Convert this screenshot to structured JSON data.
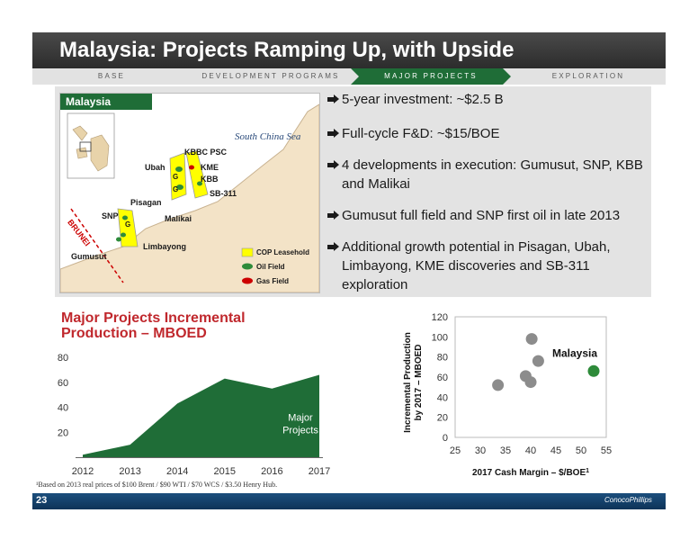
{
  "header": {
    "title": "Malaysia: Projects Ramping Up, with Upside",
    "nav": [
      {
        "label": "BASE",
        "active": false
      },
      {
        "label": "DEVELOPMENT PROGRAMS",
        "active": false
      },
      {
        "label": "MAJOR PROJECTS",
        "active": true
      },
      {
        "label": "EXPLORATION",
        "active": false
      }
    ]
  },
  "map": {
    "label": "Malaysia",
    "sea": "South China Sea",
    "places": {
      "kbbc": "KBBC PSC",
      "ubah": "Ubah",
      "kme": "KME",
      "kbb": "KBB",
      "sb311": "SB-311",
      "pisagan": "Pisagan",
      "snp": "SNP",
      "malikai": "Malikai",
      "limbayong": "Limbayong",
      "gumusut": "Gumusut",
      "brunei": "BRUNEI",
      "g1": "G",
      "g2": "G",
      "g3": "G"
    },
    "legend": {
      "leasehold": "COP Leasehold",
      "oil": "Oil Field",
      "gas": "Gas Field"
    },
    "colors": {
      "leasehold": "#ffff00",
      "oil": "#2e8b3a",
      "gas": "#cc0000"
    }
  },
  "bullets": [
    "5-year investment: ~$2.5 B",
    "Full-cycle F&D: ~$15/BOE",
    "4 developments in execution: Gumusut, SNP, KBB and Malikai",
    "Gumusut full field and SNP first oil in late 2013",
    "Additional growth potential in Pisagan, Ubah, Limbayong, KME discoveries and SB-311 exploration"
  ],
  "chart_data": [
    {
      "type": "area",
      "title_line1": "Major Projects Incremental",
      "title_line2": "Production – MBOED",
      "x": [
        2012,
        2013,
        2014,
        2015,
        2016,
        2017
      ],
      "x_tick_labels": [
        "2012",
        "2013",
        "2014",
        "2015",
        "2016",
        "2017"
      ],
      "y_ticks": [
        20,
        40,
        60,
        80
      ],
      "series": [
        {
          "name": "Major Projects",
          "name_line1": "Major",
          "name_line2": "Projects",
          "values": [
            2,
            10,
            43,
            63,
            55,
            66
          ],
          "color": "#1f6d37"
        }
      ],
      "ylim": [
        0,
        88
      ]
    },
    {
      "type": "scatter",
      "xlabel": "2017 Cash Margin – $/BOE",
      "xlabel_sup": "1",
      "ylabel_line1": "Incremental Production",
      "ylabel_line2": "by 2017 – MBOED",
      "xlim": [
        25,
        55
      ],
      "ylim": [
        0,
        120
      ],
      "x_ticks": [
        25,
        30,
        35,
        40,
        45,
        50,
        55
      ],
      "y_ticks": [
        0,
        20,
        40,
        60,
        80,
        100,
        120
      ],
      "points": [
        {
          "x": 33.5,
          "y": 52,
          "color": "#8c8c8c"
        },
        {
          "x": 39,
          "y": 61,
          "color": "#8c8c8c"
        },
        {
          "x": 40,
          "y": 55,
          "color": "#8c8c8c"
        },
        {
          "x": 40.2,
          "y": 98,
          "color": "#8c8c8c"
        },
        {
          "x": 41.5,
          "y": 76,
          "color": "#8c8c8c"
        },
        {
          "x": 52.5,
          "y": 66,
          "color": "#2e8b3a",
          "label": "Malaysia"
        }
      ]
    }
  ],
  "footnote": "¹Based on 2013 real prices of $100 Brent / $90 WTI / $70 WCS / $3.50 Henry Hub.",
  "footer": {
    "page": "23",
    "logo": "ConocoPhillips"
  }
}
